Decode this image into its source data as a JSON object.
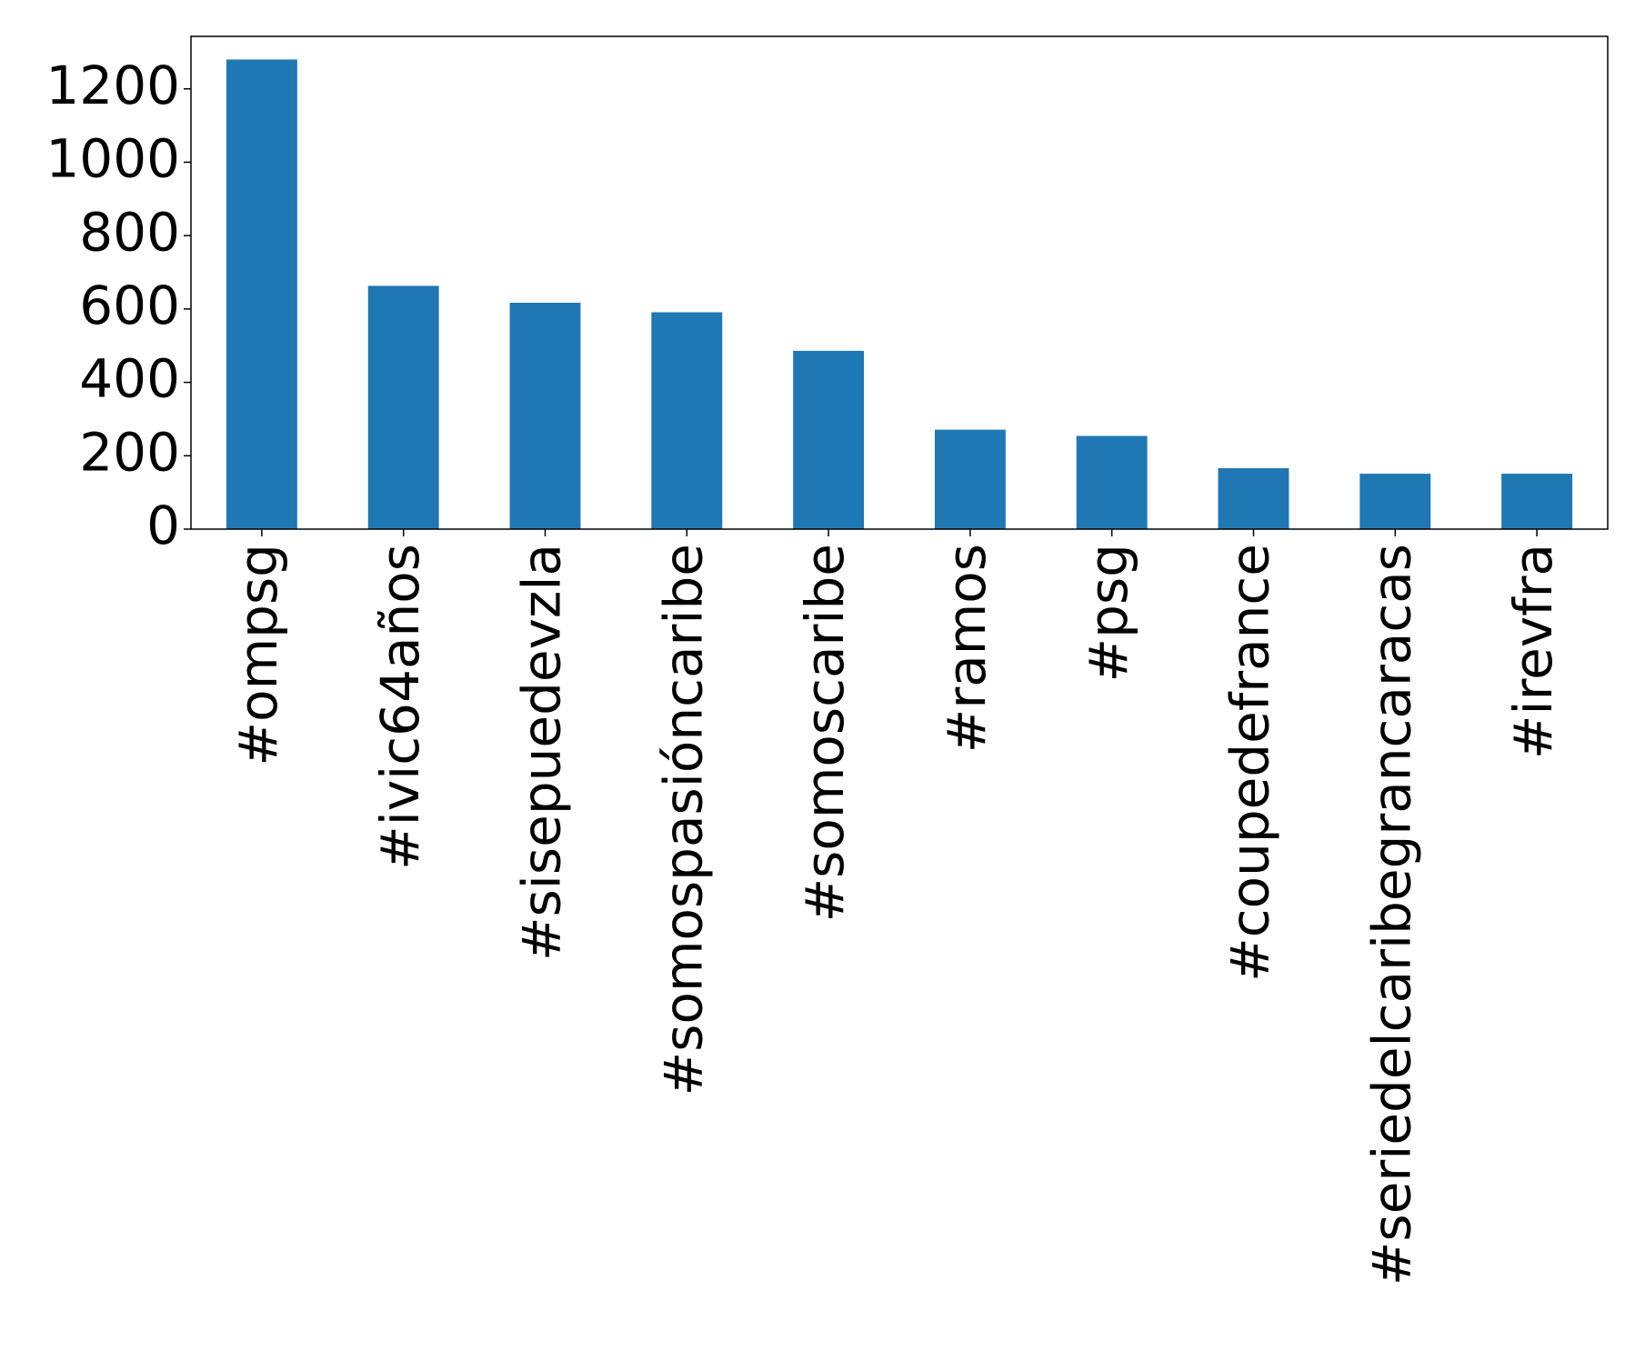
{
  "chart_data": {
    "type": "bar",
    "categories": [
      "#ompsg",
      "#ivic64años",
      "#sisepuedevzla",
      "#somospasióncaribe",
      "#somoscaribe",
      "#ramos",
      "#psg",
      "#coupedefrance",
      "#seriedelcaribegrancaracas",
      "#irevfra"
    ],
    "values": [
      1280,
      663,
      617,
      591,
      486,
      271,
      254,
      166,
      151,
      151
    ],
    "color": "#1f77b4",
    "ylim": [
      0,
      1343
    ],
    "yticks": [
      0,
      200,
      400,
      600,
      800,
      1000,
      1200
    ],
    "grid": false
  }
}
